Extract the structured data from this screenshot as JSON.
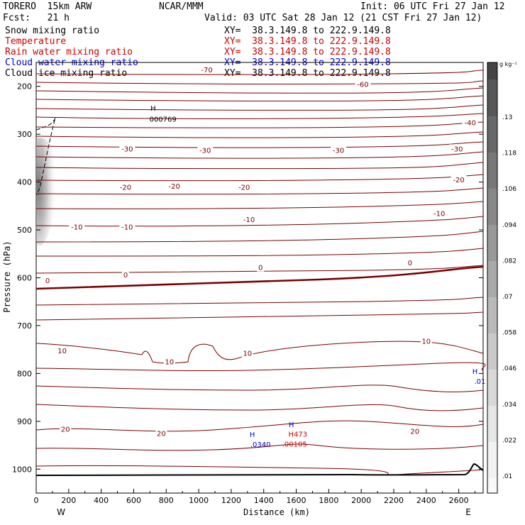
{
  "header": {
    "model": "TORERO  15km ARW",
    "org": "NCAR/MMM",
    "init": "Init: 06 UTC Fri 27 Jan 12",
    "fcst": "Fcst:   21 h",
    "valid": "Valid: 03 UTC Sat 28 Jan 12 (21 CST Fri 27 Jan 12)"
  },
  "fields": [
    {
      "name": "Snow mixing ratio",
      "xy": "XY=  38.3.149.8 to 222.9.149.8",
      "color": "#000000"
    },
    {
      "name": "Temperature",
      "xy": "XY=  38.3.149.8 to 222.9.149.8",
      "color": "#cc0000"
    },
    {
      "name": "Rain water mixing ratio",
      "xy": "XY=  38.3.149.8 to 222.9.149.8",
      "color": "#cc0000"
    },
    {
      "name": "Cloud water mixing ratio",
      "xy": "XY=  38.3.149.8 to 222.9.149.8",
      "color": "#0000cc"
    },
    {
      "name": "Cloud ice mixing ratio",
      "xy": "XY=  38.3.149.8 to 222.9.149.8",
      "color": "#000000"
    }
  ],
  "chart_data": {
    "type": "contour cross-section",
    "xlabel": "Distance (km)",
    "ylabel": "Pressure (hPa)",
    "xlim": [
      0,
      2750
    ],
    "ylim": [
      1050,
      150
    ],
    "x_ticks": [
      0,
      200,
      400,
      600,
      800,
      1000,
      1200,
      1400,
      1600,
      1800,
      2000,
      2200,
      2400,
      2600
    ],
    "y_ticks": [
      200,
      300,
      400,
      500,
      600,
      700,
      800,
      900,
      1000
    ],
    "end_labels": {
      "left": "W",
      "right": "E"
    },
    "colorbar": {
      "unit": "g kg⁻¹",
      "labels": [
        ".01",
        ".022",
        ".034",
        ".046",
        ".058",
        ".07",
        ".082",
        ".094",
        ".106",
        ".118",
        ".13"
      ]
    },
    "temperature_labels": [
      {
        "text": "-70",
        "x": 1050,
        "p": 165
      },
      {
        "text": "-60",
        "x": 2010,
        "p": 195
      },
      {
        "text": "-40",
        "x": 2670,
        "p": 275
      },
      {
        "text": "-30",
        "x": 560,
        "p": 330
      },
      {
        "text": "-30",
        "x": 1040,
        "p": 333
      },
      {
        "text": "-30",
        "x": 1860,
        "p": 333
      },
      {
        "text": "-30",
        "x": 2590,
        "p": 330
      },
      {
        "text": "-20",
        "x": 550,
        "p": 410
      },
      {
        "text": "-20",
        "x": 850,
        "p": 408
      },
      {
        "text": "-20",
        "x": 1280,
        "p": 410
      },
      {
        "text": "-20",
        "x": 2600,
        "p": 395
      },
      {
        "text": "-10",
        "x": 1310,
        "p": 478
      },
      {
        "text": "-10",
        "x": 250,
        "p": 493
      },
      {
        "text": "-10",
        "x": 560,
        "p": 493
      },
      {
        "text": "-10",
        "x": 2480,
        "p": 465
      },
      {
        "text": "0",
        "x": 70,
        "p": 605
      },
      {
        "text": "0",
        "x": 550,
        "p": 593
      },
      {
        "text": "0",
        "x": 1380,
        "p": 578
      },
      {
        "text": "0",
        "x": 2300,
        "p": 568
      },
      {
        "text": "10",
        "x": 160,
        "p": 752
      },
      {
        "text": "10",
        "x": 820,
        "p": 775
      },
      {
        "text": "10",
        "x": 1300,
        "p": 757
      },
      {
        "text": "10",
        "x": 2400,
        "p": 732
      },
      {
        "text": "20",
        "x": 180,
        "p": 916
      },
      {
        "text": "20",
        "x": 770,
        "p": 925
      },
      {
        "text": "20",
        "x": 2330,
        "p": 920
      }
    ],
    "annotations": [
      {
        "text": "H",
        "x": 720,
        "p": 245,
        "color": "#000000"
      },
      {
        "text": "000769",
        "x": 780,
        "p": 268,
        "color": "#000000"
      },
      {
        "text": "H",
        "x": 1330,
        "p": 927,
        "color": "#0000cc"
      },
      {
        "text": ".0340",
        "x": 1380,
        "p": 948,
        "color": "#0000cc"
      },
      {
        "text": "H",
        "x": 1570,
        "p": 906,
        "color": "#0000cc"
      },
      {
        "text": "H473",
        "x": 1610,
        "p": 926,
        "color": "#cc0000"
      },
      {
        "text": ".00105",
        "x": 1590,
        "p": 947,
        "color": "#cc0000"
      },
      {
        "text": "H",
        "x": 2700,
        "p": 795,
        "color": "#0000cc"
      },
      {
        "text": ".01",
        "x": 2730,
        "p": 816,
        "color": "#0000cc"
      }
    ]
  }
}
